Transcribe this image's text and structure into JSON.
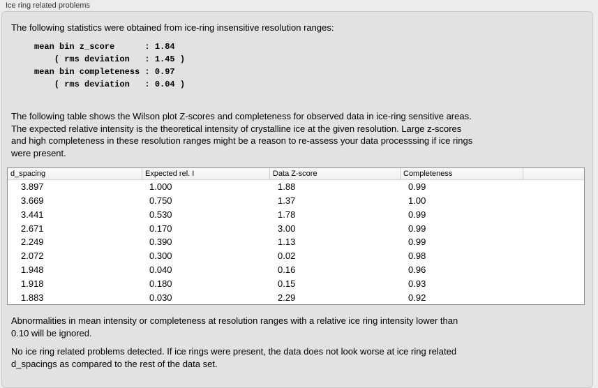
{
  "window": {
    "group_label": "Ice ring related problems"
  },
  "main": {
    "intro": "The following statistics were obtained from ice-ring insensitive resolution ranges:",
    "stats_block": "mean bin z_score      : 1.84\n    ( rms deviation   : 1.45 )\nmean bin completeness : 0.97\n    ( rms deviation   : 0.04 )",
    "stats": {
      "mean_bin_z_score": "1.84",
      "z_score_rms_deviation": "1.45",
      "mean_bin_completeness": "0.97",
      "completeness_rms_deviation": "0.04"
    },
    "table_description": "The following table shows the Wilson plot Z-scores and completeness for observed data in ice-ring sensitive areas.\nThe expected relative intensity is the theoretical intensity of crystalline ice at the given resolution. Large z-scores\nand high completeness in these resolution ranges might be a reason to re-assess your data processsing if ice rings\nwere present.",
    "table": {
      "headers": [
        "d_spacing",
        "Expected rel. I",
        "Data Z-score",
        "Completeness"
      ],
      "rows": [
        [
          "3.897",
          "1.000",
          "1.88",
          "0.99"
        ],
        [
          "3.669",
          "0.750",
          "1.37",
          "1.00"
        ],
        [
          "3.441",
          "0.530",
          "1.78",
          "0.99"
        ],
        [
          "2.671",
          "0.170",
          "3.00",
          "0.99"
        ],
        [
          "2.249",
          "0.390",
          "1.13",
          "0.99"
        ],
        [
          "2.072",
          "0.300",
          "0.02",
          "0.98"
        ],
        [
          "1.948",
          "0.040",
          "0.16",
          "0.96"
        ],
        [
          "1.918",
          "0.180",
          "0.15",
          "0.93"
        ],
        [
          "1.883",
          "0.030",
          "2.29",
          "0.92"
        ]
      ]
    },
    "ignore_note": "Abnormalities in mean intensity or completeness at resolution ranges with a relative ice ring intensity lower than\n0.10 will be ignored.",
    "conclusion": "No ice ring related problems detected. If ice rings were present, the data does not look worse at ice ring related\nd_spacings as compared to the rest of the data set."
  },
  "colors": {
    "window_bg": "#ececec",
    "panel_bg": "#e2e2e2",
    "panel_border": "#c9c9c9",
    "table_bg": "#ffffff",
    "table_border": "#8e8e8e",
    "header_separator": "#cccccc",
    "text": "#000000"
  }
}
